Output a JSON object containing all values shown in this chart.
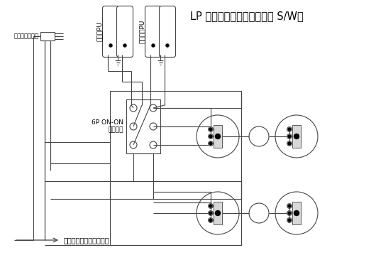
{
  "title": "LP タイプ配線図（バイパス S/W）",
  "line_color": "#444444",
  "label_toggle": "トグルスイッチ",
  "label_neck_pu": "ネックPU",
  "label_bridge_pu": "ブリッジPU",
  "label_switch": "6P ON-ON\nスイッチ",
  "label_output": "アウトプットジャックへ"
}
